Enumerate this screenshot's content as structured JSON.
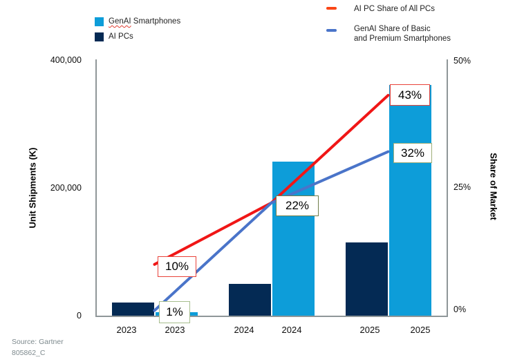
{
  "page": {
    "background": "#ffffff"
  },
  "legend_left": {
    "items": [
      {
        "label": "GenAI Smartphones",
        "squiggle_word": "GenAI",
        "swatch_color": "#0d9dd9"
      },
      {
        "label": "AI PCs",
        "squiggle_word": "",
        "swatch_color": "#042a54"
      }
    ]
  },
  "legend_right": {
    "items": [
      {
        "lines": [
          "AI PC Share of All PCs"
        ],
        "dash_color": "#fa4616"
      },
      {
        "lines": [
          "GenAI Share of Basic",
          "and Premium Smartphones"
        ],
        "dash_color": "#4a74c9"
      }
    ]
  },
  "left_axis": {
    "title": "Unit Shipments (K)",
    "ticks": [
      "400,000",
      "200,000",
      "0"
    ],
    "range": [
      0,
      400000
    ]
  },
  "right_axis": {
    "title": "Share of Market",
    "ticks": [
      "50%",
      "25%",
      "0%"
    ],
    "range_pct": [
      0,
      50
    ]
  },
  "x_axis": {
    "labels": [
      "2023",
      "2023",
      "2024",
      "2024",
      "2025",
      "2025"
    ]
  },
  "source": {
    "line1": "Source: Gartner",
    "line2": "805862_C"
  },
  "chart_data": {
    "type": "combo-bar-line",
    "title": "",
    "unit_note": "bar values in thousand units (K); line values in % share",
    "years": [
      "2023",
      "2024",
      "2025"
    ],
    "bar_series": [
      {
        "name": "AI PCs",
        "color": "#042a54",
        "values_k": [
          20000,
          50000,
          114000
        ]
      },
      {
        "name": "GenAI Smartphones",
        "color": "#0d9dd9",
        "values_k": [
          5000,
          240000,
          360000
        ]
      }
    ],
    "line_series": [
      {
        "name": "AI PC Share of All PCs",
        "color": "#f01616",
        "values_pct": [
          10,
          22,
          43
        ]
      },
      {
        "name": "GenAI Share of Basic and Premium Smartphones",
        "color": "#4a74c9",
        "values_pct": [
          1,
          22,
          32
        ]
      }
    ],
    "callouts": [
      {
        "text": "10%",
        "border_color": "#e8423a",
        "series": "AI PC Share of All PCs",
        "year": "2023"
      },
      {
        "text": "1%",
        "border_color": "#a6bd8d",
        "series": "GenAI Share of Basic and Premium Smartphones",
        "year": "2023"
      },
      {
        "text": "22%",
        "border_color": "#6f7d49",
        "series": "GenAI Share of Basic and Premium Smartphones",
        "year": "2024"
      },
      {
        "text": "43%",
        "border_color": "#e8423a",
        "series": "AI PC Share of All PCs",
        "year": "2025"
      },
      {
        "text": "32%",
        "border_color": "#9fae79",
        "series": "GenAI Share of Basic and Premium Smartphones",
        "year": "2025"
      }
    ],
    "left_axis_range": [
      0,
      400000
    ],
    "right_axis_range_pct": [
      0,
      50
    ],
    "grid": false,
    "legend_position": "top"
  }
}
